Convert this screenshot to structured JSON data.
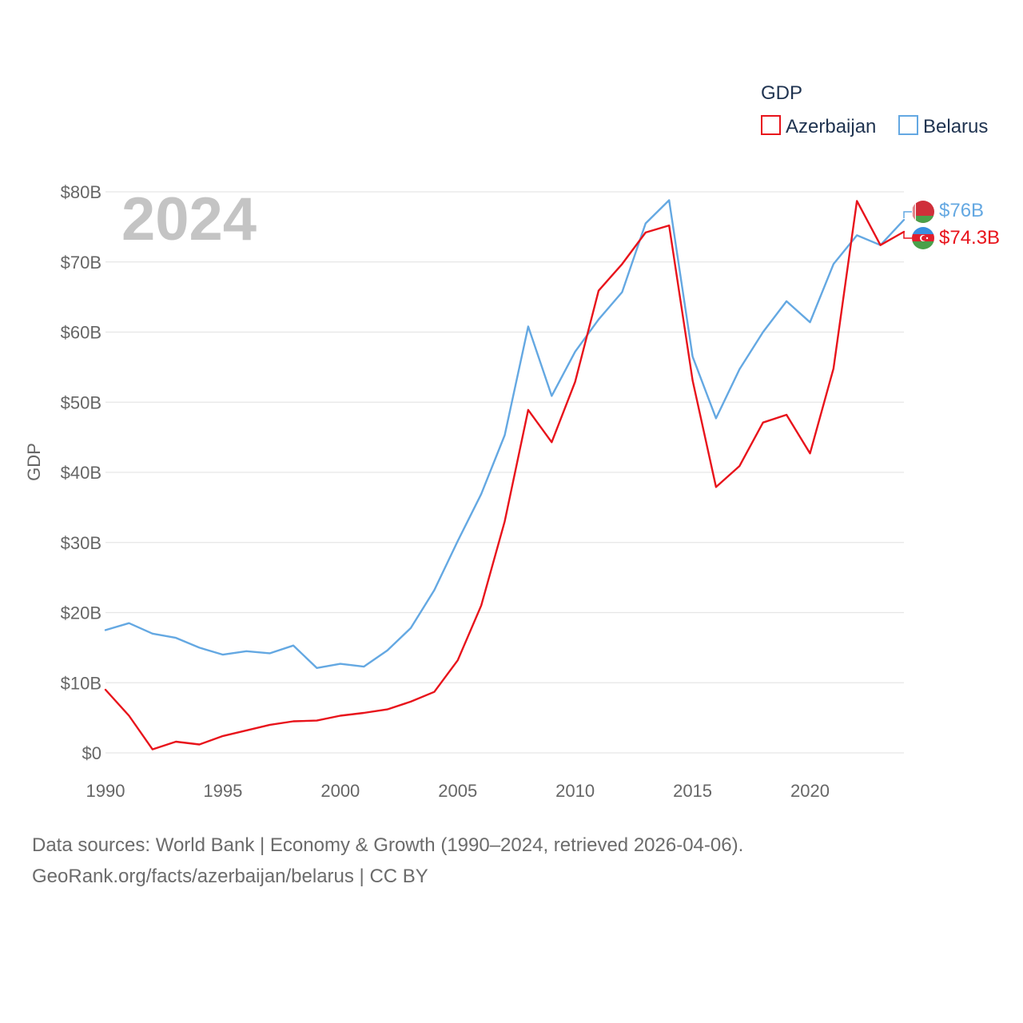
{
  "chart_data": {
    "type": "line",
    "title": "",
    "year_label": "2024",
    "xlabel": "",
    "ylabel": "GDP",
    "xlim": [
      1990,
      2024
    ],
    "ylim": [
      0,
      80
    ],
    "x_ticks": [
      1990,
      1995,
      2000,
      2005,
      2010,
      2015,
      2020
    ],
    "x_tick_labels": [
      "1990",
      "1995",
      "2000",
      "2005",
      "2010",
      "2015",
      "2020"
    ],
    "y_ticks": [
      0,
      10,
      20,
      30,
      40,
      50,
      60,
      70,
      80
    ],
    "y_tick_labels": [
      "$0",
      "$10B",
      "$20B",
      "$30B",
      "$40B",
      "$50B",
      "$60B",
      "$70B",
      "$80B"
    ],
    "y_unit": "billion USD",
    "grid": true,
    "legend": {
      "title": "GDP",
      "position": "top-right"
    },
    "x": [
      1990,
      1991,
      1992,
      1993,
      1994,
      1995,
      1996,
      1997,
      1998,
      1999,
      2000,
      2001,
      2002,
      2003,
      2004,
      2005,
      2006,
      2007,
      2008,
      2009,
      2010,
      2011,
      2012,
      2013,
      2014,
      2015,
      2016,
      2017,
      2018,
      2019,
      2020,
      2021,
      2022,
      2023,
      2024
    ],
    "series": [
      {
        "name": "Azerbaijan",
        "color": "#e8131b",
        "end_label": "$74.3B",
        "flag": "azerbaijan-flag",
        "values": [
          9.0,
          5.3,
          0.5,
          1.6,
          1.2,
          2.4,
          3.2,
          4.0,
          4.5,
          4.6,
          5.3,
          5.7,
          6.2,
          7.3,
          8.7,
          13.2,
          21.0,
          33.0,
          48.9,
          44.3,
          52.9,
          65.9,
          69.7,
          74.2,
          75.2,
          53.1,
          37.9,
          40.9,
          47.1,
          48.2,
          42.7,
          54.8,
          78.7,
          72.4,
          74.3
        ]
      },
      {
        "name": "Belarus",
        "color": "#64a8e2",
        "end_label": "$76B",
        "flag": "belarus-flag",
        "values": [
          17.5,
          18.5,
          17.0,
          16.4,
          15.0,
          14.0,
          14.5,
          14.2,
          15.3,
          12.1,
          12.7,
          12.3,
          14.6,
          17.8,
          23.2,
          30.2,
          36.9,
          45.3,
          60.8,
          50.9,
          57.2,
          61.8,
          65.7,
          75.5,
          78.8,
          56.5,
          47.7,
          54.7,
          60.0,
          64.4,
          61.4,
          69.7,
          73.8,
          72.4,
          76.0
        ]
      }
    ]
  },
  "footer": {
    "line1": "Data sources: World Bank | Economy & Growth (1990–2024, retrieved 2026-04-06).",
    "line2": "GeoRank.org/facts/azerbaijan/belarus | CC BY"
  }
}
